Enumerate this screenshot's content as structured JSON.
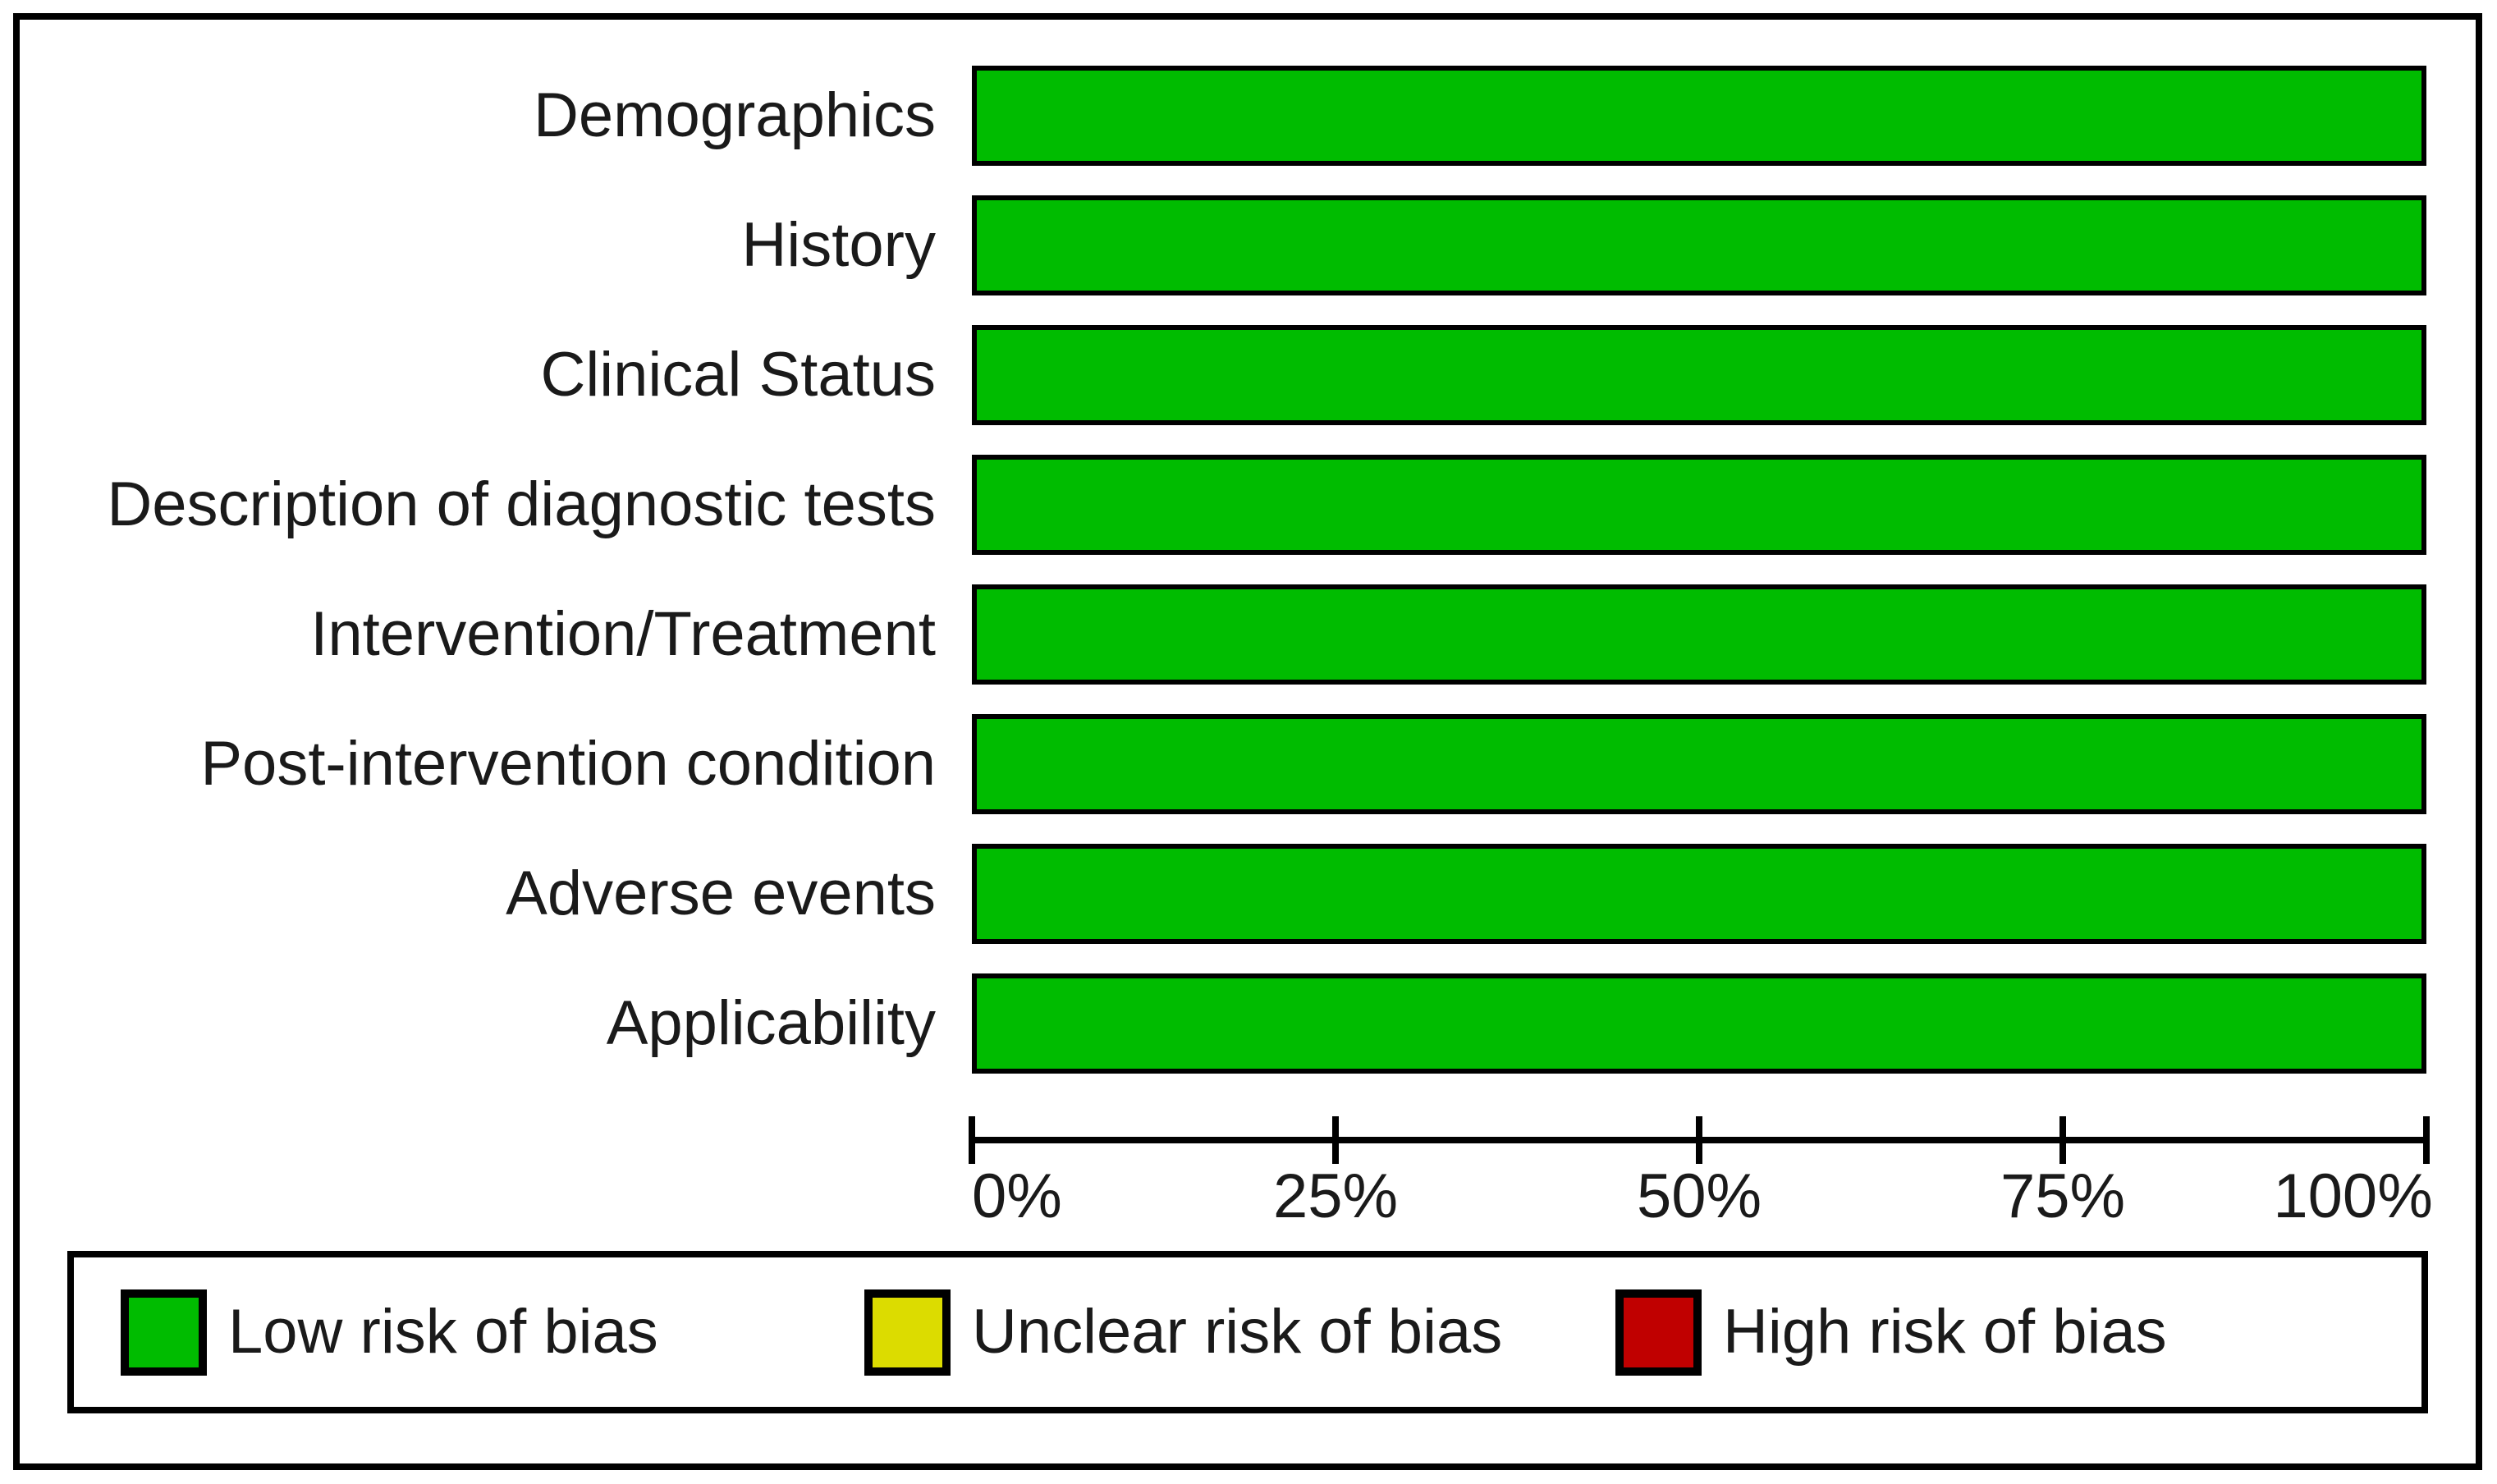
{
  "chart_data": {
    "type": "bar",
    "orientation": "horizontal",
    "stacked": true,
    "title": "",
    "xlabel": "",
    "ylabel": "",
    "grid": false,
    "legend_position": "bottom",
    "categories": [
      "Demographics",
      "History",
      "Clinical Status",
      "Description of diagnostic tests",
      "Intervention/Treatment",
      "Post-intervention condition",
      "Adverse events",
      "Applicability"
    ],
    "series": [
      {
        "name": "Low risk of bias",
        "color": "#00BC00",
        "values": [
          100,
          100,
          100,
          100,
          100,
          100,
          100,
          100
        ]
      },
      {
        "name": "Unclear risk of bias",
        "color": "#DCDC00",
        "values": [
          0,
          0,
          0,
          0,
          0,
          0,
          0,
          0
        ]
      },
      {
        "name": "High risk of bias",
        "color": "#C00000",
        "values": [
          0,
          0,
          0,
          0,
          0,
          0,
          0,
          0
        ]
      }
    ],
    "x_axis": {
      "range": [
        0,
        100
      ],
      "tick_values": [
        0,
        25,
        50,
        75,
        100
      ],
      "ticks": [
        "0%",
        "25%",
        "50%",
        "75%",
        "100%"
      ]
    }
  },
  "colors": {
    "low_risk": "#00BC00",
    "unclear_risk": "#DCDC00",
    "high_risk": "#C00000",
    "border": "#000000",
    "background": "#FFFFFF"
  }
}
